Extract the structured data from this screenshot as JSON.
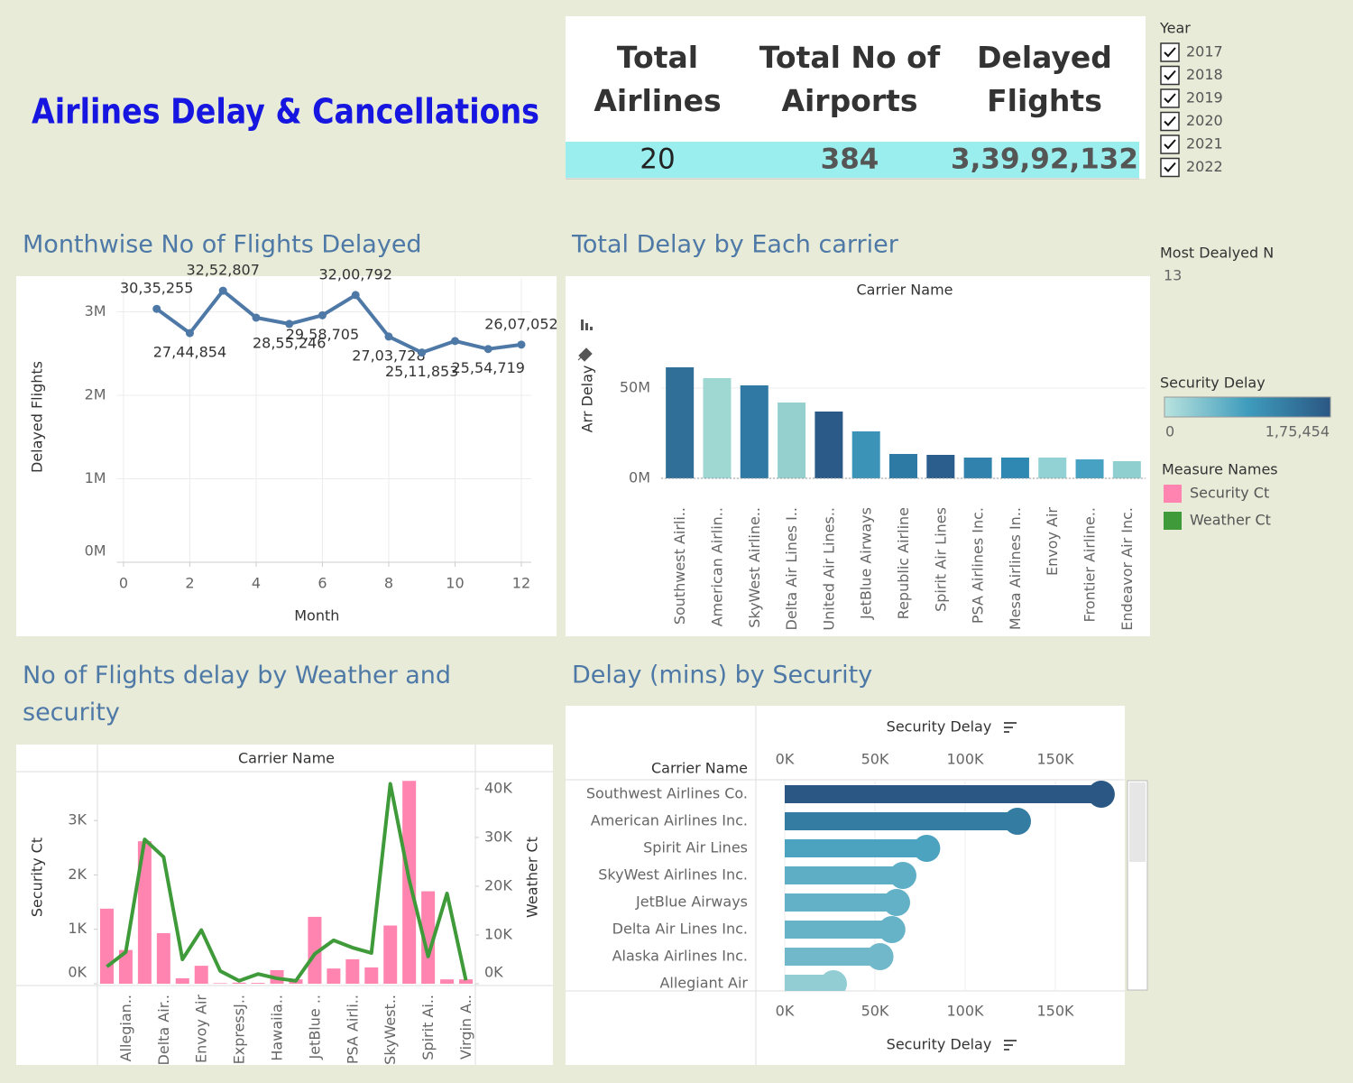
{
  "title": "Airlines Delay & Cancellations",
  "kpis": [
    {
      "label": "Total Airlines",
      "value": 20
    },
    {
      "label": "Total No of Airports",
      "value": 384
    },
    {
      "label": "Delayed Flights",
      "value": {
        "value": 33992132,
        "label": "3,39,92,132"
      }
    }
  ],
  "year_filter": {
    "title": "Year",
    "options": [
      "2017",
      "2018",
      "2019",
      "2020",
      "2021",
      "2022"
    ]
  },
  "most_delayed": {
    "title": "Most Dealyed N",
    "value": 13
  },
  "security_delay_legend": {
    "title": "Security Delay",
    "min": 0,
    "max": {
      "value": 175454,
      "label": "1,75,454"
    },
    "colors": [
      "#b9e3de",
      "#3f9cbd",
      "#2a5783"
    ]
  },
  "chart_data": [
    {
      "type": "line",
      "title": "Monthwise No of Flights Delayed",
      "x_label": "Month",
      "y_label": "Delayed Flights",
      "x": [
        1,
        2,
        3,
        4,
        5,
        6,
        7,
        8,
        9,
        10,
        11,
        12
      ],
      "values": [
        3035255,
        2744854,
        3252807,
        2930000,
        2855246,
        2958705,
        3200792,
        2703728,
        2511853,
        2650000,
        2554719,
        2607052
      ],
      "value_labels": [
        "30,35,255",
        "27,44,854",
        "32,52,807",
        null,
        "28,55,246",
        "29,58,705",
        "32,00,792",
        "27,03,728",
        "25,11,853",
        null,
        "25,54,719",
        "26,07,052"
      ],
      "color": "#4e79a7",
      "xlim": [
        -0.2,
        12.3
      ],
      "xticks": [
        0,
        2,
        4,
        6,
        8,
        10,
        12
      ],
      "ylim": [
        0,
        3400000
      ],
      "yticks": [
        {
          "value": 0,
          "label": "0M"
        },
        {
          "value": 1000000,
          "label": "1M"
        },
        {
          "value": 2000000,
          "label": "2M"
        },
        {
          "value": 3000000,
          "label": "3M"
        }
      ],
      "grid": true
    },
    {
      "type": "bar",
      "title": "Total Delay by Each carrier",
      "header": "Carrier Name",
      "y_label": "Arr Delay",
      "categories": [
        "Southwest Airli..",
        "American Airlin..",
        "SkyWest Airline..",
        "Delta Air Lines I..",
        "United Air Lines..",
        "JetBlue Airways",
        "Republic Airline",
        "Spirit Air Lines",
        "PSA Airlines Inc.",
        "Mesa Airlines In..",
        "Envoy Air",
        "Frontier Airline..",
        "Endeavor Air Inc."
      ],
      "values": [
        61500000,
        55500000,
        51500000,
        42000000,
        37000000,
        26000000,
        13500000,
        13000000,
        11500000,
        11500000,
        11500000,
        10500000,
        9500000
      ],
      "colors": [
        "#2f6f98",
        "#9fd8d3",
        "#2f79a4",
        "#95d0cf",
        "#2b5a88",
        "#3b93b7",
        "#2d7aa5",
        "#2c5e8d",
        "#3183ae",
        "#2e88b1",
        "#92d2d4",
        "#46a1c2",
        "#8fcfd0"
      ],
      "ylim": [
        0,
        96000000
      ],
      "yticks": [
        {
          "value": 0,
          "label": "0M"
        },
        {
          "value": 50000000,
          "label": "50M"
        }
      ],
      "grid": true
    },
    {
      "type": "combo",
      "title": "No of Flights delay by Weather and security",
      "header": "Carrier Name",
      "y_label": "Security Ct",
      "y2_label": "Weather Ct",
      "legend_title": "Measure Names",
      "categories": [
        null,
        "Allegian..",
        null,
        "Delta Air..",
        null,
        "Envoy Air",
        null,
        "ExpressJ..",
        null,
        "Hawaiia..",
        null,
        "JetBlue ..",
        null,
        "PSA Airli..",
        null,
        "SkyWest..",
        null,
        "Spirit Ai..",
        null,
        "Virgin A.."
      ],
      "series": [
        {
          "name": "Security Ct",
          "color": "#ff85b0",
          "mark": "bar",
          "values": [
            1380,
            620,
            2620,
            930,
            100,
            330,
            10,
            20,
            15,
            250,
            80,
            1230,
            280,
            450,
            300,
            1070,
            3730,
            1700,
            80,
            80
          ]
        },
        {
          "name": "Weather Ct",
          "color": "#3f9a3a",
          "mark": "line",
          "axis": "y2",
          "values": [
            3500,
            6500,
            29600,
            26000,
            5000,
            11000,
            2600,
            600,
            2000,
            1100,
            600,
            6100,
            8900,
            7400,
            6300,
            41000,
            21300,
            5600,
            18500,
            700
          ]
        }
      ],
      "ylim": [
        0,
        3900
      ],
      "yticks": [
        {
          "value": 0,
          "label": "0K"
        },
        {
          "value": 1000,
          "label": "1K"
        },
        {
          "value": 2000,
          "label": "2K"
        },
        {
          "value": 3000,
          "label": "3K"
        }
      ],
      "y2lim": [
        0,
        43500
      ],
      "y2ticks": [
        {
          "value": 0,
          "label": "0K"
        },
        {
          "value": 10000,
          "label": "10K"
        },
        {
          "value": 20000,
          "label": "20K"
        },
        {
          "value": 30000,
          "label": "30K"
        },
        {
          "value": 40000,
          "label": "40K"
        }
      ]
    },
    {
      "type": "lollipop",
      "title": "Delay (mins) by Security",
      "header": "Carrier Name",
      "x_label": "Security Delay",
      "categories": [
        "Southwest Airlines Co.",
        "American Airlines Inc.",
        "Spirit Air Lines",
        "SkyWest Airlines Inc.",
        "JetBlue Airways",
        "Delta Air Lines Inc.",
        "Alaska Airlines Inc.",
        "Allegiant Air"
      ],
      "values": [
        175454,
        129000,
        78700,
        65500,
        62000,
        59400,
        52800,
        27000
      ],
      "xlim": [
        -15000,
        188000
      ],
      "xticks": [
        {
          "value": 0,
          "label": "0K"
        },
        {
          "value": 50000,
          "label": "50K"
        },
        {
          "value": 100000,
          "label": "100K"
        },
        {
          "value": 150000,
          "label": "150K"
        }
      ]
    }
  ]
}
